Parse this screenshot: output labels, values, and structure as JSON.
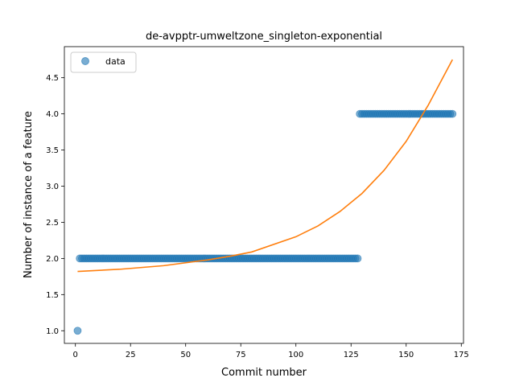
{
  "chart_data": {
    "type": "scatter",
    "title": "de-avpptr-umweltzone_singleton-exponential",
    "xlabel": "Commit number",
    "ylabel": "Number of instance of a feature",
    "xlim": [
      -5,
      176
    ],
    "ylim": [
      0.825,
      4.93
    ],
    "xticks": [
      0,
      25,
      50,
      75,
      100,
      125,
      150,
      175
    ],
    "yticks": [
      1.0,
      1.5,
      2.0,
      2.5,
      3.0,
      3.5,
      4.0,
      4.5
    ],
    "ytick_labels": [
      "1.0",
      "1.5",
      "2.0",
      "2.5",
      "3.0",
      "3.5",
      "4.0",
      "4.5"
    ],
    "legend": {
      "placement": "top-left",
      "entries": [
        "data"
      ]
    },
    "colors": {
      "data": "#1f77b4",
      "fit": "#ff7f0e"
    },
    "series": [
      {
        "name": "data",
        "kind": "points",
        "segments": [
          {
            "x_start": 1,
            "x_end": 1,
            "y": 1
          },
          {
            "x_start": 2,
            "x_end": 128,
            "y": 2
          },
          {
            "x_start": 129,
            "x_end": 171,
            "y": 4
          }
        ]
      },
      {
        "kind": "line",
        "x": [
          1,
          20,
          40,
          60,
          70,
          80,
          100,
          110,
          120,
          130,
          140,
          150,
          160,
          171
        ],
        "y": [
          1.82,
          1.85,
          1.9,
          1.98,
          2.03,
          2.09,
          2.3,
          2.45,
          2.65,
          2.9,
          3.22,
          3.62,
          4.12,
          4.75
        ]
      }
    ]
  }
}
